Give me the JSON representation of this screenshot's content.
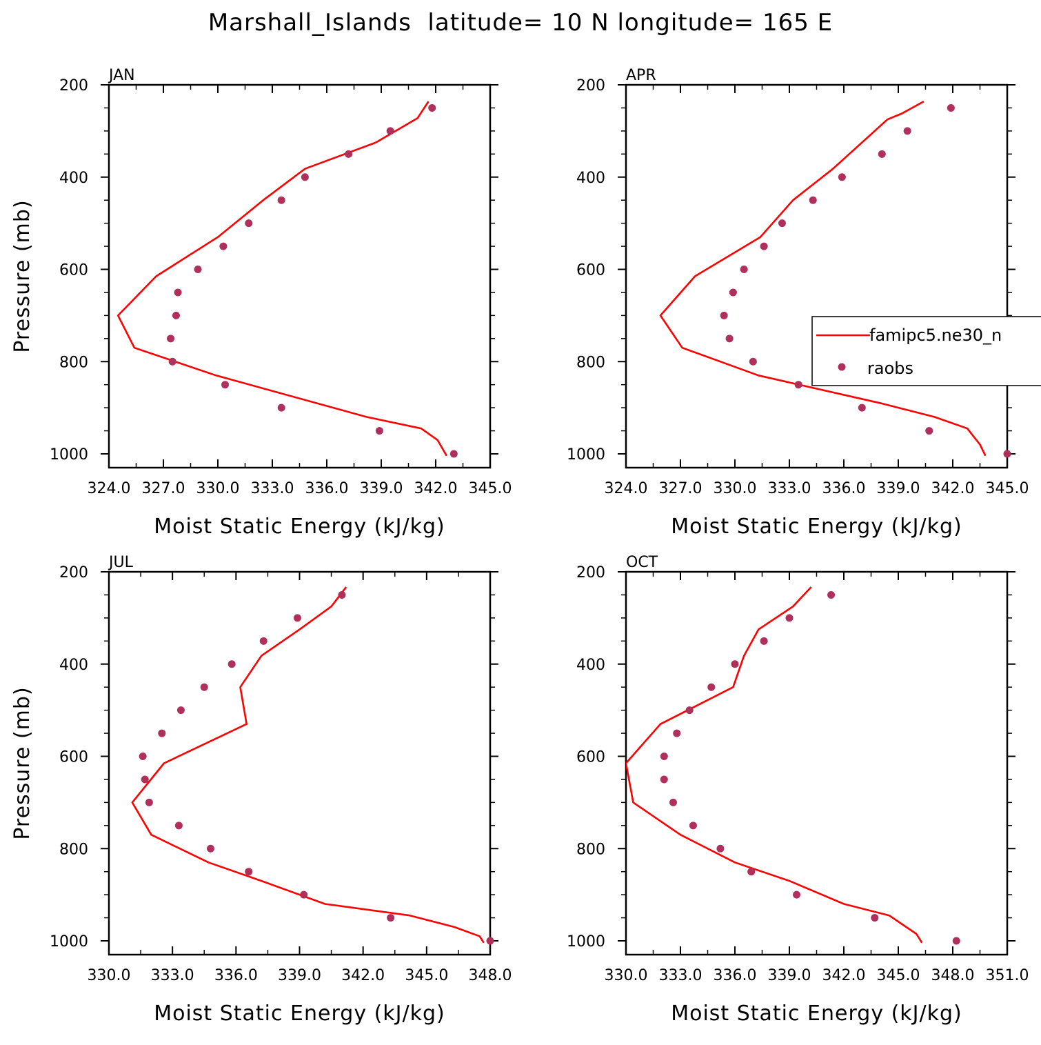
{
  "title": "Marshall_Islands  latitude= 10 N longitude= 165 E",
  "legend": {
    "model_label": "famipc5.ne30_n",
    "obs_label": "raobs"
  },
  "colors": {
    "model": "#ff0000",
    "obs": "#b0305c"
  },
  "chart_data": [
    {
      "type": "line",
      "panel": "JAN",
      "xlabel": "Moist Static Energy (kJ/kg)",
      "ylabel": "Pressure (mb)",
      "xlim": [
        324.0,
        345.0
      ],
      "ylim": [
        1000,
        200
      ],
      "xticks": [
        "324.0",
        "327.0",
        "330.0",
        "333.0",
        "336.0",
        "339.0",
        "342.0",
        "345.0"
      ],
      "yticks": [
        "200",
        "400",
        "600",
        "800",
        "1000"
      ],
      "series": [
        {
          "name": "famipc5.ne30_n",
          "x": [
            341.6,
            341.0,
            338.7,
            334.8,
            332.5,
            330.0,
            326.6,
            324.5,
            325.4,
            329.9,
            338.2,
            341.2,
            342.1,
            342.6
          ],
          "y": [
            236,
            272,
            325,
            382,
            450,
            530,
            615,
            700,
            770,
            830,
            920,
            945,
            970,
            1004
          ]
        },
        {
          "name": "raobs",
          "x": [
            341.8,
            339.5,
            337.2,
            334.8,
            333.5,
            331.7,
            330.3,
            328.9,
            327.8,
            327.7,
            327.4,
            327.5,
            330.4,
            333.5,
            338.9,
            343.0
          ],
          "y": [
            250,
            300,
            350,
            400,
            450,
            500,
            550,
            600,
            650,
            700,
            750,
            800,
            850,
            900,
            950,
            1000
          ]
        }
      ]
    },
    {
      "type": "line",
      "panel": "APR",
      "xlabel": "Moist Static Energy (kJ/kg)",
      "ylabel": "",
      "xlim": [
        324.0,
        345.0
      ],
      "ylim": [
        1000,
        200
      ],
      "xticks": [
        "324.0",
        "327.0",
        "330.0",
        "333.0",
        "336.0",
        "339.0",
        "342.0",
        "345.0"
      ],
      "yticks": [
        "200",
        "400",
        "600",
        "800",
        "1000"
      ],
      "series": [
        {
          "name": "famipc5.ne30_n",
          "x": [
            340.4,
            339.2,
            338.4,
            335.4,
            333.2,
            331.4,
            327.8,
            325.9,
            327.1,
            331.3,
            338.0,
            341.0,
            342.8,
            343.5,
            343.8
          ],
          "y": [
            236,
            262,
            275,
            382,
            450,
            530,
            615,
            700,
            770,
            830,
            890,
            920,
            945,
            980,
            1004
          ]
        },
        {
          "name": "raobs",
          "x": [
            341.9,
            339.5,
            338.1,
            335.9,
            334.3,
            332.6,
            331.6,
            330.5,
            329.9,
            329.4,
            329.7,
            331.0,
            333.5,
            337.0,
            340.7,
            345.0
          ],
          "y": [
            250,
            300,
            350,
            400,
            450,
            500,
            550,
            600,
            650,
            700,
            750,
            800,
            850,
            900,
            950,
            1000
          ]
        }
      ]
    },
    {
      "type": "line",
      "panel": "JUL",
      "xlabel": "Moist Static Energy (kJ/kg)",
      "ylabel": "Pressure (mb)",
      "xlim": [
        330.0,
        348.0
      ],
      "ylim": [
        1000,
        200
      ],
      "xticks": [
        "330.0",
        "333.0",
        "336.0",
        "339.0",
        "342.0",
        "345.0",
        "348.0"
      ],
      "yticks": [
        "200",
        "400",
        "600",
        "800",
        "1000"
      ],
      "series": [
        {
          "name": "famipc5.ne30_n",
          "x": [
            341.2,
            340.5,
            339.0,
            337.2,
            336.2,
            336.5,
            332.6,
            331.1,
            332.0,
            334.7,
            337.2,
            340.2,
            344.2,
            346.3,
            347.5,
            347.7
          ],
          "y": [
            233,
            275,
            325,
            382,
            450,
            530,
            615,
            700,
            770,
            830,
            870,
            920,
            945,
            970,
            990,
            1004
          ]
        },
        {
          "name": "raobs",
          "x": [
            341.0,
            338.9,
            337.3,
            335.8,
            334.5,
            333.4,
            332.5,
            331.6,
            331.7,
            331.9,
            333.3,
            334.8,
            336.6,
            339.2,
            343.3,
            348.0
          ],
          "y": [
            250,
            300,
            350,
            400,
            450,
            500,
            550,
            600,
            650,
            700,
            750,
            800,
            850,
            900,
            950,
            1000
          ]
        }
      ]
    },
    {
      "type": "line",
      "panel": "OCT",
      "xlabel": "Moist Static Energy (kJ/kg)",
      "ylabel": "",
      "xlim": [
        330.0,
        351.0
      ],
      "ylim": [
        1000,
        200
      ],
      "xticks": [
        "330.0",
        "333.0",
        "336.0",
        "339.0",
        "342.0",
        "345.0",
        "348.0",
        "351.0"
      ],
      "yticks": [
        "200",
        "400",
        "600",
        "800",
        "1000"
      ],
      "series": [
        {
          "name": "famipc5.ne30_n",
          "x": [
            340.2,
            339.2,
            337.3,
            336.5,
            335.9,
            331.9,
            330.0,
            330.4,
            333.0,
            336.0,
            339.0,
            342.0,
            344.5,
            346.0,
            346.3
          ],
          "y": [
            233,
            275,
            325,
            382,
            450,
            530,
            615,
            700,
            770,
            830,
            870,
            920,
            945,
            985,
            1004
          ]
        },
        {
          "name": "raobs",
          "x": [
            341.3,
            339.0,
            337.6,
            336.0,
            334.7,
            333.5,
            332.8,
            332.1,
            332.1,
            332.6,
            333.7,
            335.2,
            336.9,
            339.4,
            343.7,
            348.2
          ],
          "y": [
            250,
            300,
            350,
            400,
            450,
            500,
            550,
            600,
            650,
            700,
            750,
            800,
            850,
            900,
            950,
            1000
          ]
        }
      ]
    }
  ]
}
